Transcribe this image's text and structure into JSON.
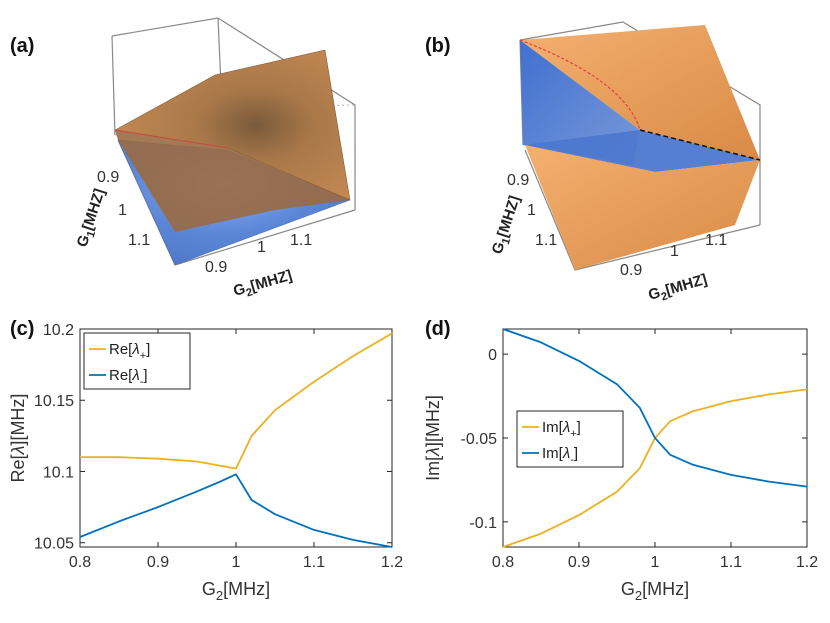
{
  "panels": {
    "a": {
      "label": "(a)",
      "g1_label_main": "G",
      "g1_label_sub": "1",
      "g1_label_unit": "[MHZ]",
      "g2_label_main": "G",
      "g2_label_sub": "2",
      "g2_label_unit": "[MHZ]",
      "g1_ticks": [
        "0.9",
        "1",
        "1.1"
      ],
      "g2_ticks": [
        "0.9",
        "1",
        "1.1"
      ]
    },
    "b": {
      "label": "(b)",
      "g1_label_main": "G",
      "g1_label_sub": "1",
      "g1_label_unit": "[MHZ]",
      "g2_label_main": "G",
      "g2_label_sub": "2",
      "g2_label_unit": "[MHZ]",
      "g1_ticks": [
        "0.9",
        "1",
        "1.1"
      ],
      "g2_ticks": [
        "0.9",
        "1",
        "1.1"
      ]
    },
    "c": {
      "label": "(c)"
    },
    "d": {
      "label": "(d)"
    }
  },
  "colors": {
    "orange": "#EDB120",
    "blue": "#0072BD",
    "surface_orange": "#E8A05A",
    "surface_blue": "#5B86D6"
  },
  "chart_data": [
    {
      "id": "c",
      "type": "line",
      "xlabel_main": "G",
      "xlabel_sub": "2",
      "xlabel_unit": "[MHz]",
      "ylabel_main": "Re[",
      "ylabel_sym": "λ",
      "ylabel_end": "][MHz]",
      "xlim": [
        0.8,
        1.2
      ],
      "ylim": [
        10.047,
        10.2
      ],
      "xticks": [
        "0.8",
        "0.9",
        "1",
        "1.1",
        "1.2"
      ],
      "yticks": [
        "10.05",
        "10.1",
        "10.15",
        "10.2"
      ],
      "legend_position": "top-left",
      "series": [
        {
          "name_main": "Re[",
          "name_sym": "λ",
          "name_sub": "+",
          "name_end": "]",
          "x": [
            0.8,
            0.85,
            0.9,
            0.95,
            0.98,
            1.0,
            1.02,
            1.05,
            1.1,
            1.15,
            1.2
          ],
          "y": [
            10.11,
            10.11,
            10.109,
            10.107,
            10.104,
            10.102,
            10.125,
            10.143,
            10.163,
            10.181,
            10.197
          ]
        },
        {
          "name_main": "Re[",
          "name_sym": "λ",
          "name_sub": "-",
          "name_end": "]",
          "x": [
            0.8,
            0.85,
            0.9,
            0.95,
            0.98,
            1.0,
            1.02,
            1.05,
            1.1,
            1.15,
            1.2
          ],
          "y": [
            10.054,
            10.065,
            10.075,
            10.086,
            10.093,
            10.098,
            10.08,
            10.07,
            10.059,
            10.052,
            10.047
          ]
        }
      ]
    },
    {
      "id": "d",
      "type": "line",
      "xlabel_main": "G",
      "xlabel_sub": "2",
      "xlabel_unit": "[MHz]",
      "ylabel_main": "Im[",
      "ylabel_sym": "λ",
      "ylabel_end": "][MHz]",
      "xlim": [
        0.8,
        1.2
      ],
      "ylim": [
        -0.115,
        0.015
      ],
      "xticks": [
        "0.8",
        "0.9",
        "1",
        "1.1",
        "1.2"
      ],
      "yticks": [
        "0",
        "-0.05",
        "-0.1"
      ],
      "legend_position": "middle-left",
      "series": [
        {
          "name_main": "Im[",
          "name_sym": "λ",
          "name_sub": "+",
          "name_end": "]",
          "x": [
            0.8,
            0.85,
            0.9,
            0.95,
            0.98,
            1.0,
            1.02,
            1.05,
            1.1,
            1.15,
            1.2
          ],
          "y": [
            -0.115,
            -0.107,
            -0.096,
            -0.082,
            -0.068,
            -0.05,
            -0.04,
            -0.034,
            -0.028,
            -0.024,
            -0.021
          ]
        },
        {
          "name_main": "Im[",
          "name_sym": "λ",
          "name_sub": "-",
          "name_end": "]",
          "x": [
            0.8,
            0.85,
            0.9,
            0.95,
            0.98,
            1.0,
            1.02,
            1.05,
            1.1,
            1.15,
            1.2
          ],
          "y": [
            0.015,
            0.007,
            -0.004,
            -0.018,
            -0.032,
            -0.05,
            -0.06,
            -0.066,
            -0.072,
            -0.076,
            -0.079
          ]
        }
      ]
    }
  ]
}
